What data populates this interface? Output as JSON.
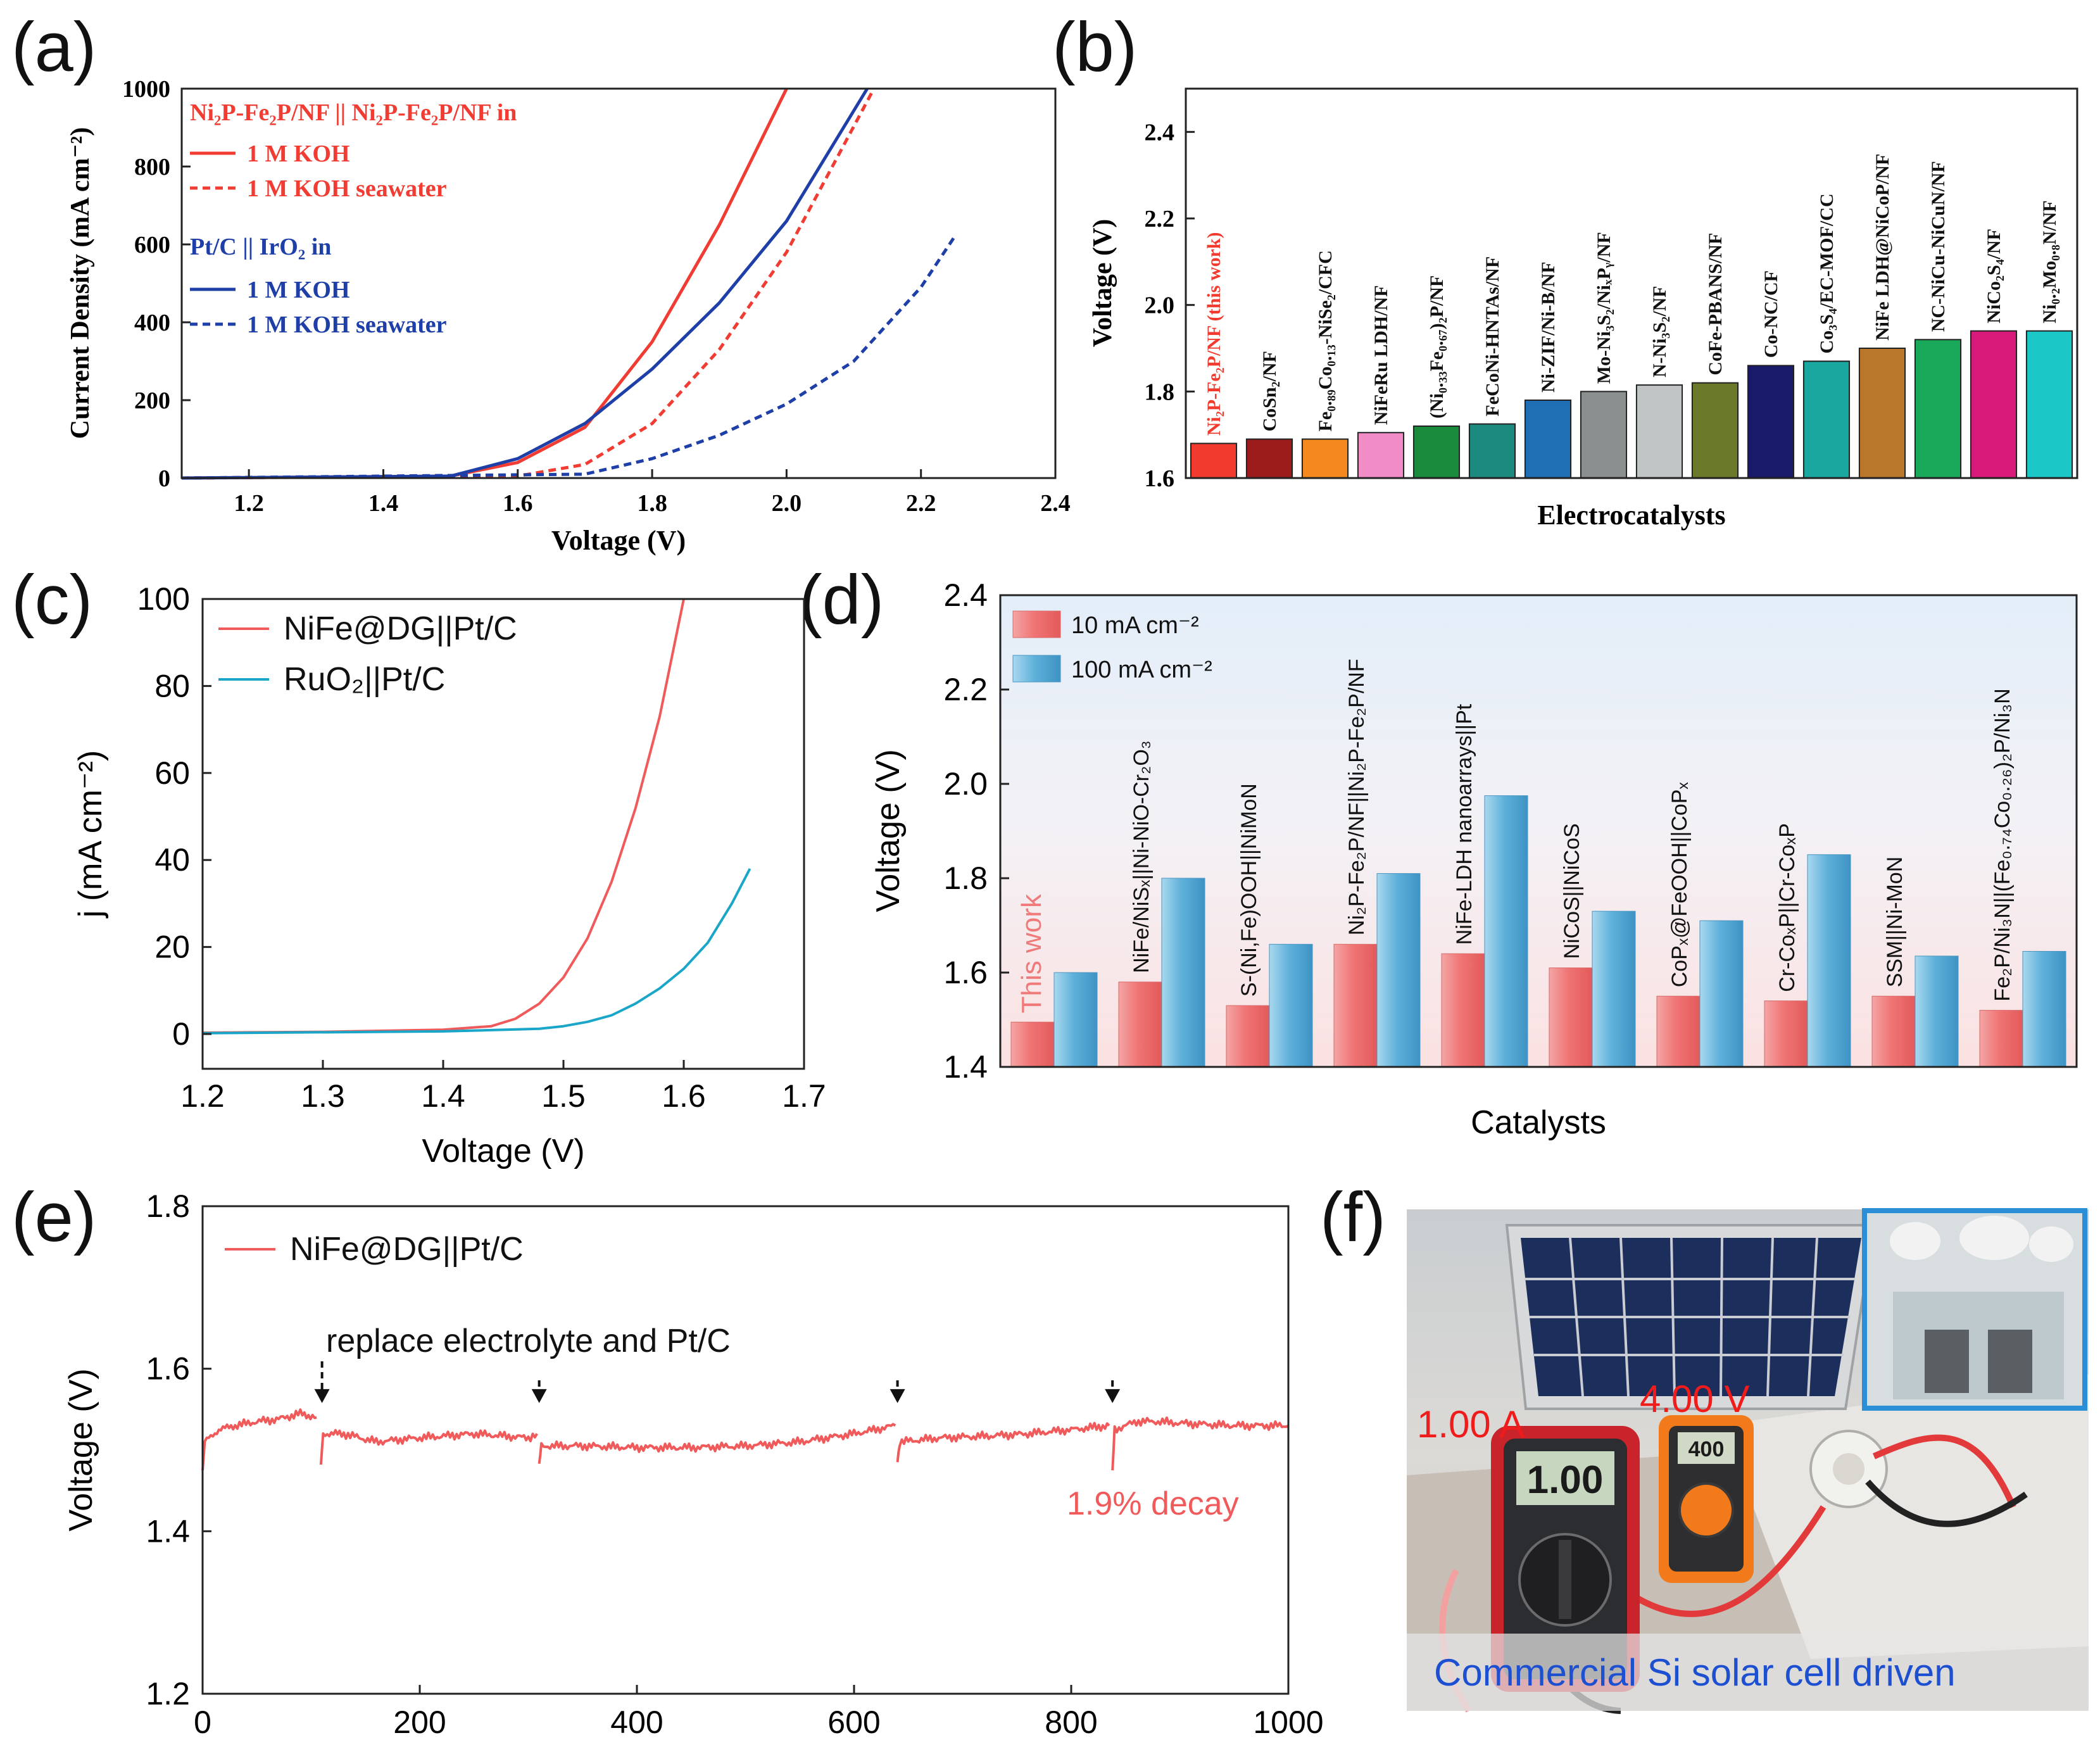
{
  "chart_data": [
    {
      "panel": "(a)",
      "type": "line",
      "title": "",
      "xlabel": "Voltage (V)",
      "ylabel": "Current Density (mA cm⁻²)",
      "xlim": [
        1.1,
        2.4
      ],
      "ylim": [
        0,
        1000
      ],
      "x_ticks": [
        1.2,
        1.4,
        1.6,
        1.8,
        2.0,
        2.2,
        2.4
      ],
      "y_ticks": [
        0,
        200,
        400,
        600,
        800,
        1000
      ],
      "legend_groups": [
        {
          "header": "Ni₂P-Fe₂P/NF || Ni₂P-Fe₂P/NF in",
          "color": "#f03c32"
        },
        {
          "header": "Pt/C || IrO₂ in",
          "color": "#1f3fa8"
        }
      ],
      "series": [
        {
          "name": "1 M KOH",
          "group": 0,
          "color": "#f03c32",
          "dash": false,
          "x": [
            1.1,
            1.5,
            1.6,
            1.7,
            1.8,
            1.9,
            2.0
          ],
          "y": [
            0,
            5,
            40,
            130,
            350,
            650,
            1000
          ]
        },
        {
          "name": "1 M KOH seawater",
          "group": 0,
          "color": "#f03c32",
          "dash": true,
          "x": [
            1.1,
            1.6,
            1.7,
            1.8,
            1.9,
            2.0,
            2.13
          ],
          "y": [
            0,
            5,
            35,
            140,
            330,
            580,
            1000
          ]
        },
        {
          "name": "1 M KOH",
          "group": 1,
          "color": "#1f3fa8",
          "dash": false,
          "x": [
            1.1,
            1.5,
            1.6,
            1.7,
            1.8,
            1.9,
            2.0,
            2.12
          ],
          "y": [
            0,
            5,
            50,
            140,
            280,
            450,
            660,
            1000
          ]
        },
        {
          "name": "1 M KOH seawater",
          "group": 1,
          "color": "#1f3fa8",
          "dash": true,
          "x": [
            1.1,
            1.7,
            1.8,
            1.9,
            2.0,
            2.1,
            2.2,
            2.25
          ],
          "y": [
            0,
            10,
            50,
            110,
            190,
            300,
            490,
            620
          ]
        }
      ]
    },
    {
      "panel": "(b)",
      "type": "bar",
      "title": "",
      "xlabel": "Electrocatalysts",
      "ylabel": "Voltage (V)",
      "ylim": [
        1.6,
        2.5
      ],
      "y_ticks": [
        1.6,
        1.8,
        2.0,
        2.2,
        2.4
      ],
      "categories": [
        "Ni₂P-Fe₂P/NF (this work)",
        "CoSn₂/NF",
        "Fe₀.₈₉Co₀.₁₃-NiSe₂/CFC",
        "NiFeRu LDH/NF",
        "(Ni₀.₃₃Fe₀.₆₇)₂P/NF",
        "FeCoNi-HNTAs/NF",
        "Ni-ZIF/Ni-B/NF",
        "Mo-Ni₃S₂/NiₓPᵧ/NF",
        "N-Ni₃S₂/NF",
        "CoFe-PBANS/NF",
        "Co-NC/CF",
        "Co₃S₄/EC-MOF/CC",
        "NiFe LDH@NiCoP/NF",
        "NC-NiCu-NiCuN/NF",
        "NiCo₂S₄/NF",
        "Ni₀.₂Mo₀.₈N/NF"
      ],
      "values": [
        1.68,
        1.69,
        1.69,
        1.705,
        1.72,
        1.725,
        1.78,
        1.8,
        1.815,
        1.82,
        1.86,
        1.87,
        1.9,
        1.92,
        1.94,
        1.94
      ],
      "colors": [
        "#f23a2e",
        "#9b1b1b",
        "#f3891f",
        "#f28cc6",
        "#1a8a3c",
        "#1c8a7e",
        "#1f6fb5",
        "#8a8f8f",
        "#c0c4c4",
        "#6b7a2a",
        "#1a1a6b",
        "#1aa7a0",
        "#b8772a",
        "#1aa85a",
        "#d81b7a",
        "#1cc7c8"
      ],
      "highlight_label_color": "#f23a2e"
    },
    {
      "panel": "(c)",
      "type": "line",
      "title": "",
      "xlabel": "Voltage (V)",
      "ylabel": "j (mA cm⁻²)",
      "xlim": [
        1.2,
        1.7
      ],
      "ylim": [
        -8,
        100
      ],
      "x_ticks": [
        1.2,
        1.3,
        1.4,
        1.5,
        1.6,
        1.7
      ],
      "y_ticks": [
        0,
        20,
        40,
        60,
        80,
        100
      ],
      "series": [
        {
          "name": "NiFe@DG||Pt/C",
          "color": "#f05a5a",
          "x": [
            1.2,
            1.3,
            1.4,
            1.44,
            1.46,
            1.48,
            1.5,
            1.52,
            1.54,
            1.56,
            1.58,
            1.6
          ],
          "y": [
            0.3,
            0.5,
            1.0,
            1.8,
            3.5,
            7,
            13,
            22,
            35,
            52,
            73,
            100
          ]
        },
        {
          "name": "RuO₂||Pt/C",
          "color": "#1aa6c8",
          "x": [
            1.2,
            1.4,
            1.48,
            1.5,
            1.52,
            1.54,
            1.56,
            1.58,
            1.6,
            1.62,
            1.64,
            1.655
          ],
          "y": [
            0.2,
            0.6,
            1.2,
            1.8,
            2.8,
            4.3,
            7,
            10.5,
            15,
            21,
            30,
            38
          ]
        }
      ]
    },
    {
      "panel": "(d)",
      "type": "bar",
      "title": "",
      "xlabel": "Catalysts",
      "ylabel": "Voltage (V)",
      "ylim": [
        1.4,
        2.4
      ],
      "y_ticks": [
        1.4,
        1.6,
        1.8,
        2.0,
        2.2,
        2.4
      ],
      "categories": [
        "This work",
        "NiFe/NiSₓ||Ni-NiO-Cr₂O₃",
        "S-(Ni,Fe)OOH||NiMoN",
        "Ni₂P-Fe₂P/NF||Ni₂P-Fe₂P/NF",
        "NiFe-LDH nanoarrays||Pt",
        "NiCoS||NiCoS",
        "CoPₓ@FeOOH||CoPₓ",
        "Cr-CoₓP||Cr-CoₓP",
        "SSM||Ni-MoN",
        "Fe₂P/Ni₃N||(Fe₀.₇₄Co₀.₂₆)₂P/Ni₃N"
      ],
      "series": [
        {
          "name": "10 mA cm⁻²",
          "color": "#f07a7a",
          "values": [
            1.495,
            1.58,
            1.53,
            1.66,
            1.64,
            1.61,
            1.55,
            1.54,
            1.55,
            1.52
          ]
        },
        {
          "name": "100 mA cm⁻²",
          "color": "#5aaed6",
          "values": [
            1.6,
            1.8,
            1.66,
            1.81,
            1.975,
            1.73,
            1.71,
            1.85,
            1.635,
            1.645
          ]
        }
      ],
      "highlight_label_color": "#f07a7a"
    },
    {
      "panel": "(e)",
      "type": "line",
      "title": "",
      "xlabel": "",
      "ylabel": "Voltage (V)",
      "xlim": [
        0,
        1000
      ],
      "ylim": [
        1.2,
        1.8
      ],
      "x_ticks": [
        0,
        200,
        400,
        600,
        800,
        1000
      ],
      "y_ticks": [
        1.2,
        1.4,
        1.6,
        1.8
      ],
      "series": [
        {
          "name": "NiFe@DG||Pt/C",
          "color": "#f05a5a",
          "segments": [
            {
              "x": [
                0,
                2,
                15,
                30,
                50,
                70,
                90,
                105
              ],
              "y": [
                1.475,
                1.51,
                1.525,
                1.53,
                1.535,
                1.538,
                1.545,
                1.54
              ]
            },
            {
              "x": [
                109,
                111,
                130,
                160,
                200,
                250,
                300,
                308
              ],
              "y": [
                1.482,
                1.52,
                1.52,
                1.51,
                1.515,
                1.52,
                1.515,
                1.52
              ]
            },
            {
              "x": [
                310,
                312,
                350,
                400,
                450,
                500,
                550,
                600,
                638
              ],
              "y": [
                1.483,
                1.505,
                1.505,
                1.503,
                1.503,
                1.505,
                1.51,
                1.52,
                1.53
              ]
            },
            {
              "x": [
                640,
                642,
                680,
                720,
                760,
                800,
                835
              ],
              "y": [
                1.485,
                1.51,
                1.515,
                1.517,
                1.52,
                1.525,
                1.53
              ]
            },
            {
              "x": [
                838,
                840,
                860,
                880,
                900,
                950,
                1000
              ],
              "y": [
                1.475,
                1.525,
                1.535,
                1.535,
                1.533,
                1.53,
                1.53
              ]
            }
          ]
        }
      ],
      "arrows_at_x": [
        110,
        310,
        640,
        838
      ],
      "annotations": [
        "replace electrolyte and Pt/C",
        "1.9% decay"
      ]
    }
  ],
  "panel_labels": {
    "a": "(a)",
    "b": "(b)",
    "c": "(c)",
    "d": "(d)",
    "e": "(e)",
    "f": "(f)"
  },
  "panel_a": {
    "legend_title_1": "Ni₂P-Fe₂P/NF || Ni₂P-Fe₂P/NF in",
    "legend_title_2": "Pt/C || IrO₂ in"
  },
  "panel_f": {
    "current_reading": "1.00 A",
    "voltage_reading": "4.00 V",
    "meter1_display": "1.00",
    "meter2_display": "400",
    "caption": "Commercial Si solar cell driven"
  }
}
